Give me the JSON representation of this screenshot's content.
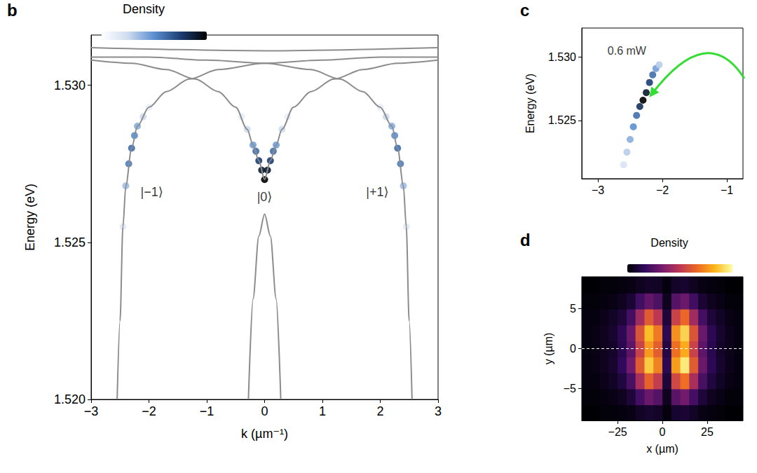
{
  "chart_data": [
    {
      "type": "line",
      "panel": "b",
      "x_label": "k (µm⁻¹)",
      "y_label": "Energy (eV)",
      "grid": false,
      "xlim": [
        -3,
        3
      ],
      "xticks": [
        {
          "value": -3,
          "label": "−3"
        },
        {
          "value": -2,
          "label": "−2"
        },
        {
          "value": -1,
          "label": "−1"
        },
        0,
        1,
        2,
        3
      ],
      "ylim": [
        1.52,
        1.5316
      ],
      "yticks": [
        {
          "value": 1.52,
          "label": "1.520"
        },
        {
          "value": 1.525,
          "label": "1.525"
        },
        {
          "value": 1.53,
          "label": "1.530"
        }
      ],
      "series": [
        {
          "color": "#8c8c8c",
          "x": [
            -2.55,
            -2.5,
            -2.45,
            -2.4,
            -2.3,
            -2.2,
            -2.0,
            -1.7,
            -1.3,
            -0.8,
            0,
            1,
            2,
            3
          ],
          "values": [
            1.52,
            1.5225,
            1.5255,
            1.5268,
            1.528,
            1.5287,
            1.5293,
            1.5298,
            1.5302,
            1.5305,
            1.5307,
            1.5308,
            1.5309,
            1.5309
          ]
        },
        {
          "color": "#8c8c8c",
          "x": [
            -3,
            -2,
            -1,
            0,
            0.8,
            1.3,
            1.7,
            2.0,
            2.2,
            2.3,
            2.4,
            2.45,
            2.5,
            2.55
          ],
          "values": [
            1.5309,
            1.5309,
            1.5308,
            1.5307,
            1.5305,
            1.5302,
            1.5298,
            1.5293,
            1.5287,
            1.528,
            1.5268,
            1.5255,
            1.5225,
            1.52
          ]
        },
        {
          "color": "#8c8c8c",
          "x": [
            -3,
            -2.3,
            -1.7,
            -1.2,
            -0.8,
            -0.5,
            -0.3,
            -0.2,
            -0.1,
            0,
            0.1,
            0.2,
            0.3,
            0.5,
            0.8,
            1.2,
            1.7,
            2.3,
            3
          ],
          "values": [
            1.5308,
            1.5307,
            1.5305,
            1.5302,
            1.5298,
            1.5293,
            1.5286,
            1.5281,
            1.5276,
            1.527,
            1.5276,
            1.5281,
            1.5286,
            1.5293,
            1.5298,
            1.5302,
            1.5305,
            1.5307,
            1.5308
          ]
        },
        {
          "color": "#8c8c8c",
          "x": [
            -0.28,
            -0.2,
            -0.1,
            0,
            0.1,
            0.2,
            0.28
          ],
          "values": [
            1.52,
            1.5232,
            1.5252,
            1.5259,
            1.5252,
            1.5232,
            1.52
          ]
        },
        {
          "color": "#8c8c8c",
          "x": [
            -3,
            0,
            3
          ],
          "values": [
            1.5312,
            1.5311,
            1.5312
          ]
        }
      ],
      "density": {
        "title": "Density",
        "range": [
          0,
          1
        ],
        "points": [
          [
            -2.45,
            1.5255,
            0.15
          ],
          [
            -2.4,
            1.5268,
            0.35
          ],
          [
            -2.35,
            1.5275,
            0.55
          ],
          [
            -2.3,
            1.528,
            0.6
          ],
          [
            -2.25,
            1.5284,
            0.5
          ],
          [
            -2.2,
            1.5287,
            0.4
          ],
          [
            -2.1,
            1.529,
            0.25
          ],
          [
            -2.0,
            1.5293,
            0.12
          ],
          [
            -0.4,
            1.529,
            0.12
          ],
          [
            -0.3,
            1.5286,
            0.25
          ],
          [
            -0.2,
            1.5281,
            0.45
          ],
          [
            -0.15,
            1.5279,
            0.6
          ],
          [
            -0.1,
            1.5276,
            0.75
          ],
          [
            -0.05,
            1.5273,
            0.9
          ],
          [
            0,
            1.527,
            1
          ],
          [
            0.05,
            1.5273,
            0.9
          ],
          [
            0.1,
            1.5276,
            0.75
          ],
          [
            0.15,
            1.5279,
            0.6
          ],
          [
            0.2,
            1.5281,
            0.45
          ],
          [
            0.3,
            1.5286,
            0.25
          ],
          [
            0.4,
            1.529,
            0.12
          ],
          [
            2.0,
            1.5293,
            0.12
          ],
          [
            2.1,
            1.529,
            0.25
          ],
          [
            2.2,
            1.5287,
            0.4
          ],
          [
            2.25,
            1.5284,
            0.5
          ],
          [
            2.3,
            1.528,
            0.6
          ],
          [
            2.35,
            1.5275,
            0.55
          ],
          [
            2.4,
            1.5268,
            0.35
          ],
          [
            2.45,
            1.5255,
            0.15
          ]
        ]
      },
      "annotations": [
        {
          "text": "|−1⟩",
          "x": -1.95,
          "y": 1.5266
        },
        {
          "text": "|0⟩",
          "x": 0,
          "y": 1.52645
        },
        {
          "text": "|+1⟩",
          "x": 1.95,
          "y": 1.5266
        }
      ]
    },
    {
      "type": "scatter",
      "panel": "c",
      "y_label": "Energy (eV)",
      "grid": false,
      "xlim": [
        -3.25,
        -0.75
      ],
      "xticks": [
        {
          "value": -3,
          "label": "−3"
        },
        {
          "value": -2,
          "label": "−2"
        },
        {
          "value": -1,
          "label": "−1"
        }
      ],
      "ylim": [
        1.5204,
        1.5323
      ],
      "yticks": [
        {
          "value": 1.525,
          "label": "1.525"
        },
        {
          "value": 1.53,
          "label": "1.530"
        }
      ],
      "density": {
        "range": [
          0,
          1
        ],
        "points": [
          [
            -2.6,
            1.5215,
            0.2
          ],
          [
            -2.55,
            1.5225,
            0.3
          ],
          [
            -2.5,
            1.5235,
            0.4
          ],
          [
            -2.45,
            1.5245,
            0.5
          ],
          [
            -2.4,
            1.5254,
            0.6
          ],
          [
            -2.35,
            1.5261,
            0.8
          ],
          [
            -2.3,
            1.5266,
            1
          ],
          [
            -2.25,
            1.5272,
            0.9
          ],
          [
            -2.2,
            1.528,
            0.75
          ],
          [
            -2.15,
            1.5286,
            0.6
          ],
          [
            -2.1,
            1.5291,
            0.45
          ],
          [
            -2.05,
            1.5294,
            0.3
          ]
        ]
      },
      "annotations": [
        {
          "text": "0.6 mW",
          "x": -2.55,
          "y": 1.5305
        }
      ]
    },
    {
      "type": "heatmap",
      "panel": "d",
      "x_label": "x (µm)",
      "y_label": "y (µm)",
      "grid": false,
      "xlim": [
        -45,
        45
      ],
      "xticks": [
        {
          "value": -25,
          "label": "−25"
        },
        0,
        25
      ],
      "ylim": [
        -9,
        9
      ],
      "yticks": [
        {
          "value": -5,
          "label": "−5"
        },
        0,
        5
      ],
      "density": {
        "title": "Density",
        "range": [
          0,
          1
        ],
        "x": [
          -42.5,
          -37.5,
          -32.5,
          -27.5,
          -22.5,
          -17.5,
          -12.5,
          -7.5,
          -2.5,
          2.5,
          7.5,
          12.5,
          17.5,
          22.5,
          27.5,
          32.5,
          37.5,
          42.5
        ],
        "y": [
          -8,
          -6,
          -4,
          -2,
          0,
          2,
          4,
          6,
          8
        ],
        "cells": [
          [
            0,
            0,
            0.01,
            0.01,
            0.02,
            0.03,
            0.06,
            0.08,
            0.07,
            0.02,
            0.08,
            0.09,
            0.06,
            0.03,
            0.02,
            0.01,
            0,
            0
          ],
          [
            0.01,
            0.01,
            0.02,
            0.03,
            0.05,
            0.1,
            0.21,
            0.3,
            0.25,
            0.05,
            0.26,
            0.32,
            0.21,
            0.1,
            0.05,
            0.03,
            0.01,
            0.01
          ],
          [
            0.02,
            0.02,
            0.04,
            0.06,
            0.11,
            0.22,
            0.45,
            0.64,
            0.52,
            0.1,
            0.56,
            0.68,
            0.45,
            0.22,
            0.11,
            0.06,
            0.03,
            0.02
          ],
          [
            0.02,
            0.03,
            0.05,
            0.08,
            0.16,
            0.32,
            0.62,
            0.88,
            0.72,
            0.15,
            0.78,
            0.95,
            0.62,
            0.3,
            0.15,
            0.08,
            0.04,
            0.02
          ],
          [
            0.02,
            0.03,
            0.05,
            0.07,
            0.14,
            0.27,
            0.54,
            0.77,
            0.63,
            0.12,
            0.68,
            0.81,
            0.54,
            0.27,
            0.14,
            0.07,
            0.04,
            0.02
          ],
          [
            0.02,
            0.03,
            0.05,
            0.08,
            0.15,
            0.3,
            0.6,
            0.85,
            0.7,
            0.15,
            0.75,
            0.9,
            0.6,
            0.3,
            0.15,
            0.08,
            0.04,
            0.02
          ],
          [
            0.02,
            0.02,
            0.04,
            0.06,
            0.1,
            0.21,
            0.43,
            0.62,
            0.5,
            0.1,
            0.54,
            0.66,
            0.43,
            0.21,
            0.1,
            0.06,
            0.03,
            0.02
          ],
          [
            0.01,
            0.01,
            0.02,
            0.03,
            0.05,
            0.09,
            0.2,
            0.28,
            0.23,
            0.05,
            0.25,
            0.3,
            0.2,
            0.09,
            0.05,
            0.03,
            0.01,
            0.01
          ],
          [
            0,
            0,
            0.01,
            0.01,
            0.02,
            0.03,
            0.05,
            0.07,
            0.06,
            0.02,
            0.07,
            0.08,
            0.05,
            0.03,
            0.02,
            0.01,
            0,
            0
          ]
        ]
      },
      "reference_line": {
        "y": 0,
        "line_style": "dashed"
      }
    }
  ]
}
